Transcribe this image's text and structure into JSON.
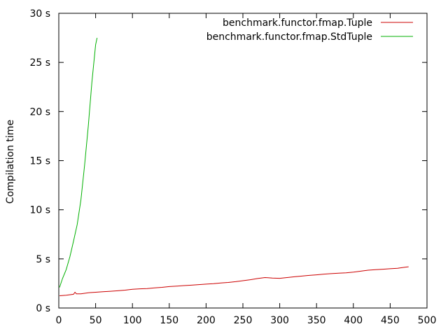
{
  "chart_data": {
    "type": "line",
    "title": "",
    "xlabel": "",
    "ylabel": "Compilation time",
    "xlim": [
      0,
      500
    ],
    "ylim": [
      0,
      30
    ],
    "grid": false,
    "legend_position": "top-right",
    "x_ticks": [
      {
        "value": 0,
        "label": "0"
      },
      {
        "value": 50,
        "label": "50"
      },
      {
        "value": 100,
        "label": "100"
      },
      {
        "value": 150,
        "label": "150"
      },
      {
        "value": 200,
        "label": "200"
      },
      {
        "value": 250,
        "label": "250"
      },
      {
        "value": 300,
        "label": "300"
      },
      {
        "value": 350,
        "label": "350"
      },
      {
        "value": 400,
        "label": "400"
      },
      {
        "value": 450,
        "label": "450"
      },
      {
        "value": 500,
        "label": "500"
      }
    ],
    "y_ticks": [
      {
        "value": 0,
        "label": "0 s"
      },
      {
        "value": 5,
        "label": "5 s"
      },
      {
        "value": 10,
        "label": "10 s"
      },
      {
        "value": 15,
        "label": "15 s"
      },
      {
        "value": 20,
        "label": "20 s"
      },
      {
        "value": 25,
        "label": "25 s"
      },
      {
        "value": 30,
        "label": "30 s"
      }
    ],
    "series": [
      {
        "name": "benchmark.functor.fmap.Tuple",
        "color": "#cc0000",
        "x": [
          1,
          10,
          20,
          22,
          24,
          30,
          40,
          50,
          60,
          70,
          80,
          90,
          100,
          110,
          120,
          130,
          140,
          150,
          160,
          170,
          180,
          190,
          200,
          210,
          220,
          230,
          240,
          250,
          260,
          270,
          280,
          290,
          300,
          310,
          320,
          330,
          340,
          350,
          360,
          370,
          380,
          390,
          400,
          410,
          420,
          430,
          440,
          450,
          460,
          470,
          475
        ],
        "y": [
          1.25,
          1.3,
          1.4,
          1.6,
          1.45,
          1.45,
          1.55,
          1.6,
          1.65,
          1.7,
          1.75,
          1.82,
          1.9,
          1.95,
          1.98,
          2.05,
          2.1,
          2.18,
          2.22,
          2.28,
          2.32,
          2.38,
          2.43,
          2.48,
          2.55,
          2.6,
          2.68,
          2.78,
          2.88,
          3.0,
          3.1,
          3.05,
          3.02,
          3.1,
          3.18,
          3.25,
          3.32,
          3.38,
          3.45,
          3.5,
          3.55,
          3.58,
          3.65,
          3.75,
          3.85,
          3.9,
          3.95,
          4.0,
          4.05,
          4.15,
          4.2
        ]
      },
      {
        "name": "benchmark.functor.fmap.StdTuple",
        "color": "#00b000",
        "x": [
          1,
          5,
          10,
          15,
          20,
          25,
          30,
          35,
          40,
          45,
          50,
          52
        ],
        "y": [
          2.1,
          3.0,
          3.9,
          5.2,
          6.8,
          8.5,
          11.0,
          14.5,
          18.5,
          23.0,
          26.8,
          27.5
        ]
      }
    ]
  }
}
